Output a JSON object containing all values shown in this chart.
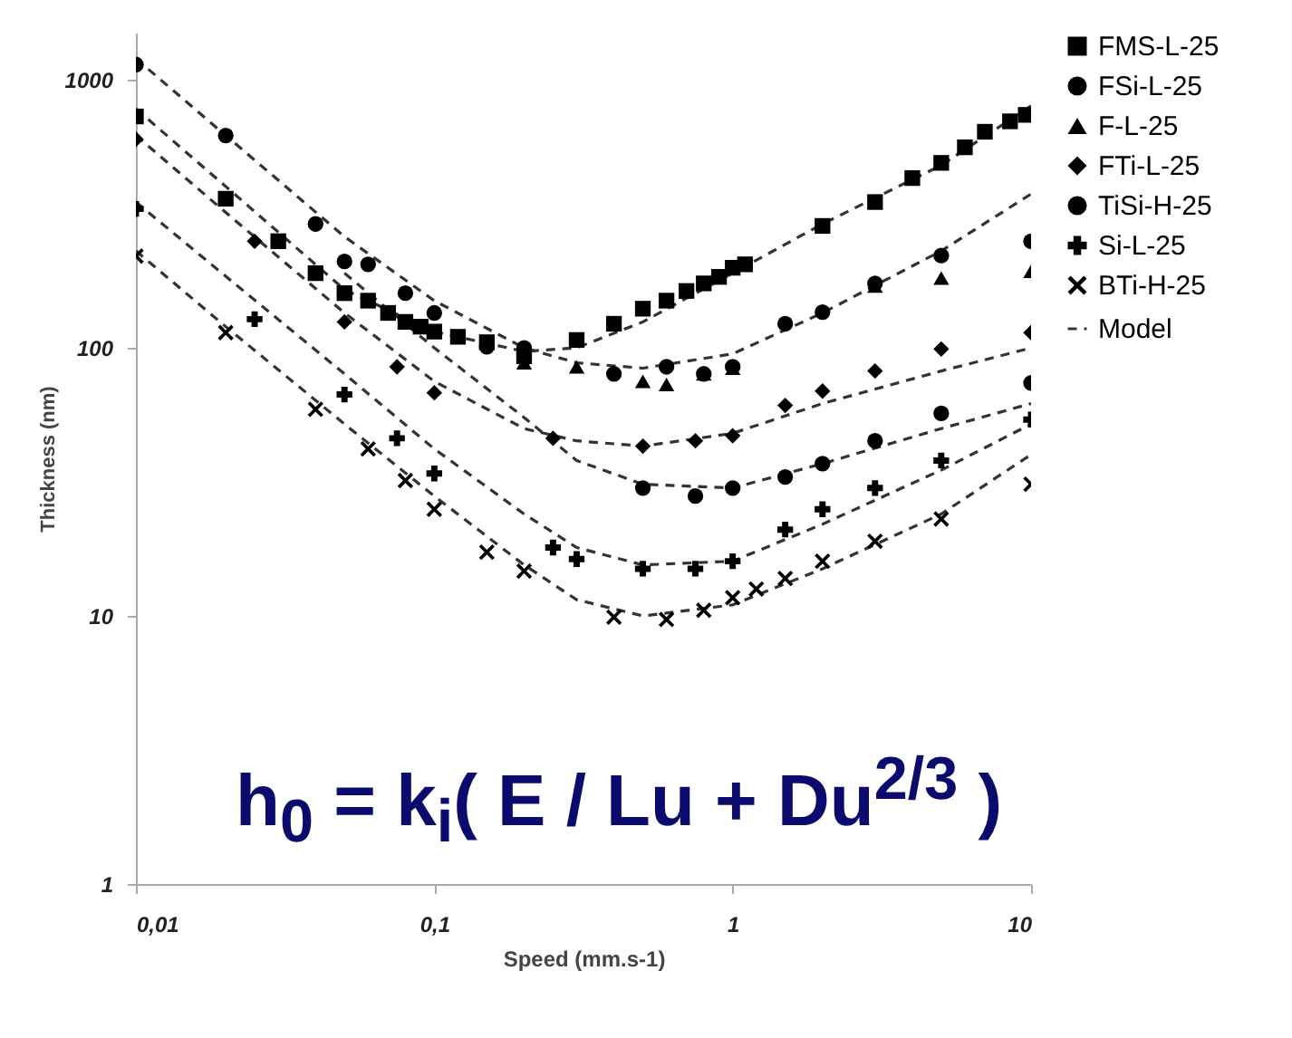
{
  "chart_data": {
    "type": "scatter",
    "xlabel": "Speed (mm.s-1)",
    "ylabel": "Thickness (nm)",
    "log": "xy",
    "legend": "right",
    "xlim": [
      0.01,
      10
    ],
    "ylim": [
      1,
      1500
    ],
    "xticks": [
      {
        "value": 0.01,
        "label": "0,01"
      },
      {
        "value": 0.1,
        "label": "0,1"
      },
      1,
      10
    ],
    "yticks": [
      1,
      10,
      100,
      1000
    ],
    "annotations": [
      "h$_{0}$ = k$_{i}$( E / Lu + Du$^{2/3}$ )"
    ],
    "series": [
      {
        "name": "FMS-L-25",
        "marker": "square",
        "color": "#000000",
        "x": [
          0.01,
          0.02,
          0.03,
          0.04,
          0.05,
          0.06,
          0.07,
          0.08,
          0.09,
          0.1,
          0.12,
          0.15,
          0.2,
          0.3,
          0.4,
          0.5,
          0.6,
          0.7,
          0.8,
          0.9,
          1,
          1.1,
          2,
          3,
          4,
          5,
          6,
          7,
          8.5,
          9.6
        ],
        "values": [
          730,
          360,
          250,
          190,
          160,
          150,
          135,
          125,
          120,
          115,
          110,
          105,
          93,
          107,
          123,
          140,
          150,
          163,
          174,
          184,
          199,
          205,
          285,
          350,
          430,
          490,
          560,
          640,
          700,
          740
        ]
      },
      {
        "name": "FSi-L-25",
        "marker": "circle",
        "color": "#000000",
        "x": [
          0.01,
          0.02,
          0.04,
          0.06,
          0.08,
          0.1,
          0.15,
          0.2,
          0.4,
          0.6,
          0.8,
          1,
          1.5,
          2,
          3,
          5,
          10
        ],
        "values": [
          1140,
          620,
          290,
          205,
          160,
          135,
          101,
          100,
          80,
          85,
          80,
          85,
          123,
          136,
          174,
          221,
          250
        ]
      },
      {
        "name": "F-L-25",
        "marker": "triangle",
        "color": "#000000",
        "x": [
          0.2,
          0.3,
          0.5,
          0.6,
          0.8,
          1,
          3,
          5,
          10
        ],
        "values": [
          88,
          85,
          75,
          73,
          80,
          84,
          170,
          182,
          193
        ]
      },
      {
        "name": "FTi-L-25",
        "marker": "diamond",
        "color": "#000000",
        "x": [
          0.01,
          0.025,
          0.05,
          0.075,
          0.1,
          0.25,
          0.5,
          0.75,
          1,
          1.5,
          2,
          3,
          5,
          10
        ],
        "values": [
          600,
          250,
          125,
          85,
          68,
          46,
          43,
          45,
          47,
          61,
          69,
          82,
          99,
          114
        ]
      },
      {
        "name": "TiSi-H-25",
        "marker": "circle",
        "color": "#000000",
        "x": [
          0.05,
          0.5,
          0.75,
          1,
          1.5,
          2,
          3,
          5,
          10
        ],
        "values": [
          210,
          30,
          28,
          30,
          33,
          37,
          45,
          57,
          74
        ]
      },
      {
        "name": "Si-L-25",
        "marker": "plus",
        "color": "#000000",
        "x": [
          0.01,
          0.025,
          0.05,
          0.075,
          0.1,
          0.25,
          0.3,
          0.5,
          0.75,
          1,
          1.5,
          2,
          3,
          5,
          10
        ],
        "values": [
          330,
          128,
          67,
          46,
          34,
          18,
          16.3,
          15,
          15,
          16,
          21,
          25,
          30,
          38,
          54
        ]
      },
      {
        "name": "BTi-H-25",
        "marker": "cross",
        "color": "#000000",
        "x": [
          0.01,
          0.02,
          0.04,
          0.06,
          0.08,
          0.1,
          0.15,
          0.2,
          0.4,
          0.6,
          0.8,
          1,
          1.2,
          1.5,
          2,
          3,
          5,
          10
        ],
        "values": [
          220,
          114,
          59,
          42,
          32,
          25,
          17.3,
          14.7,
          9.9,
          9.7,
          10.5,
          11.7,
          12.6,
          13.8,
          16,
          19,
          23,
          31
        ]
      },
      {
        "name": "Model",
        "type": "line",
        "line_style": "dashed",
        "color": "#333333",
        "x": [
          0.01,
          0.02,
          0.05,
          0.1,
          0.2,
          0.3,
          0.5,
          1,
          2,
          5,
          10
        ],
        "values": [
          780,
          400,
          165,
          115,
          97,
          100,
          125,
          190,
          290,
          480,
          800
        ]
      },
      {
        "type": "line",
        "line_style": "dashed",
        "color": "#333333",
        "x": [
          0.01,
          0.02,
          0.05,
          0.1,
          0.2,
          0.3,
          0.5,
          1,
          2,
          5,
          10
        ],
        "values": [
          1200,
          620,
          260,
          150,
          100,
          88,
          84,
          95,
          135,
          230,
          375
        ]
      },
      {
        "type": "line",
        "line_style": "dashed",
        "color": "#333333",
        "x": [
          0.01,
          0.02,
          0.05,
          0.1,
          0.2,
          0.3,
          0.5,
          1,
          2,
          5,
          10
        ],
        "values": [
          620,
          320,
          135,
          75,
          50,
          45,
          43,
          48,
          62,
          82,
          100
        ]
      },
      {
        "type": "line",
        "line_style": "dashed",
        "color": "#333333",
        "x": [
          0.05,
          0.1,
          0.2,
          0.3,
          0.5,
          1,
          2,
          5,
          10
        ],
        "values": [
          190,
          100,
          55,
          38,
          31,
          30,
          37,
          50,
          62
        ]
      },
      {
        "type": "line",
        "line_style": "dashed",
        "color": "#333333",
        "x": [
          0.01,
          0.02,
          0.05,
          0.1,
          0.2,
          0.3,
          0.5,
          1,
          2,
          5,
          10
        ],
        "values": [
          350,
          185,
          80,
          42,
          24,
          18,
          15.5,
          16,
          22,
          35,
          52
        ]
      },
      {
        "type": "line",
        "line_style": "dashed",
        "color": "#333333",
        "x": [
          0.01,
          0.02,
          0.05,
          0.1,
          0.2,
          0.3,
          0.5,
          1,
          2,
          5,
          10
        ],
        "values": [
          230,
          120,
          52,
          28,
          15.5,
          11.5,
          10,
          11,
          15,
          24,
          40
        ]
      }
    ]
  }
}
